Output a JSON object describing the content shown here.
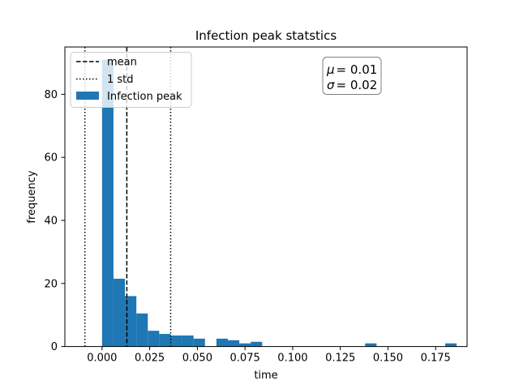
{
  "chart_data": {
    "type": "bar",
    "title": "Infection peak statstics",
    "xlabel": "time",
    "ylabel": "frequency",
    "xlim": [
      -0.0195,
      0.1915
    ],
    "ylim": [
      0,
      95
    ],
    "xticks": [
      0.0,
      0.025,
      0.05,
      0.075,
      0.1,
      0.125,
      0.15,
      0.175
    ],
    "xtick_labels": [
      "0.000",
      "0.025",
      "0.050",
      "0.075",
      "0.100",
      "0.125",
      "0.150",
      "0.175"
    ],
    "yticks": [
      0,
      20,
      40,
      60,
      80
    ],
    "ytick_labels": [
      "0",
      "20",
      "40",
      "60",
      "80"
    ],
    "grid": false,
    "bin_width": 0.006,
    "bin_start": 0.0,
    "series": [
      {
        "name": "Infection peak",
        "color": "#1f77b4",
        "values": [
          91,
          21.5,
          16,
          10.5,
          5,
          4,
          3.5,
          3.5,
          2.5,
          0,
          2.5,
          2,
          1,
          1.5,
          0,
          0,
          0,
          0,
          0,
          0,
          0,
          0,
          0,
          1,
          0,
          0,
          0,
          0,
          0,
          0,
          1
        ]
      }
    ],
    "lines": [
      {
        "name": "mean",
        "x": 0.013,
        "style": "dashed",
        "color": "#000000"
      },
      {
        "name": "1 std",
        "x": -0.009,
        "style": "dotted",
        "color": "#000000"
      },
      {
        "name": "1 std",
        "x": 0.036,
        "style": "dotted",
        "color": "#000000"
      }
    ],
    "legend": {
      "placement": "top-left",
      "entries": [
        {
          "label": "mean",
          "kind": "dashed-line"
        },
        {
          "label": "1 std",
          "kind": "dotted-line"
        },
        {
          "label": "Infection peak",
          "kind": "patch"
        }
      ]
    },
    "annotation": {
      "placement": "top-right",
      "mu_symbol": "μ",
      "mu_value": "= 0.01",
      "sigma_symbol": "σ",
      "sigma_value": "= 0.02"
    }
  }
}
